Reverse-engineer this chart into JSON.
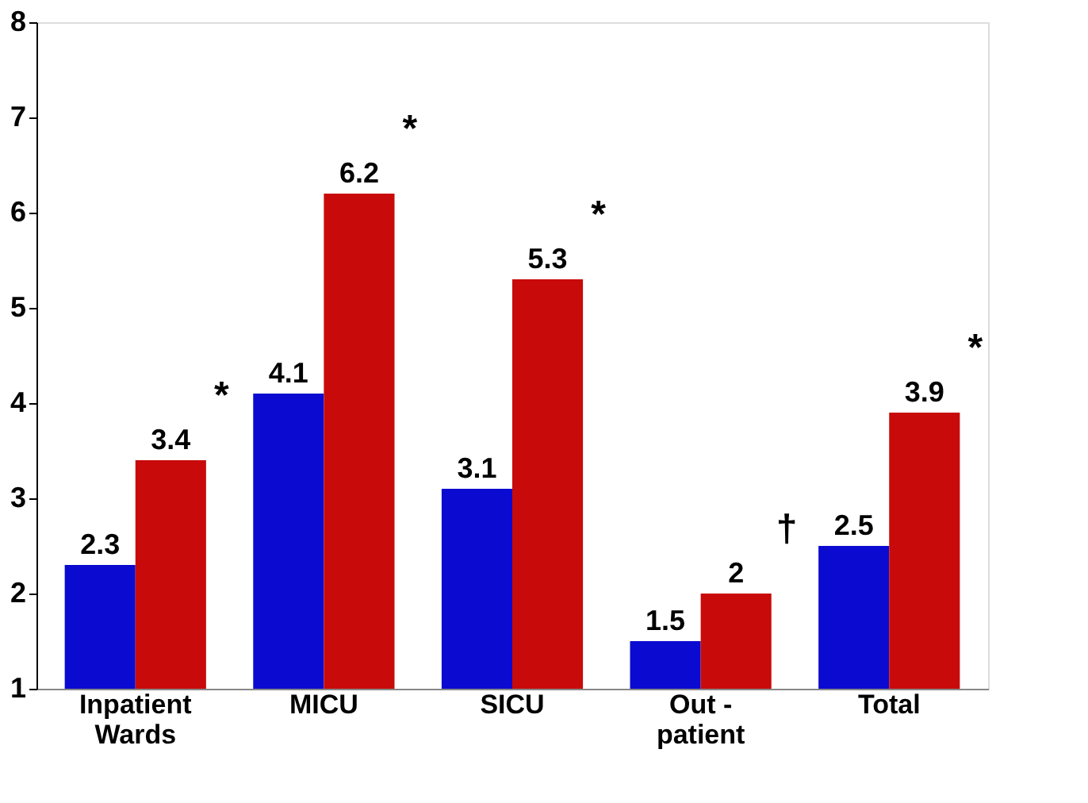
{
  "chart_data": {
    "type": "bar",
    "categories": [
      "Inpatient\nWards",
      "MICU",
      "SICU",
      "Out -\npatient",
      "Total"
    ],
    "series": [
      {
        "color": "#0a0ad0",
        "values": [
          2.3,
          4.1,
          3.1,
          1.5,
          2.5
        ]
      },
      {
        "color": "#c80a0a",
        "values": [
          3.4,
          6.2,
          5.3,
          2,
          3.9
        ]
      }
    ],
    "ylim": [
      1,
      8
    ],
    "yticks": [
      1,
      2,
      3,
      4,
      5,
      6,
      7,
      8
    ],
    "grid": false,
    "legend": false,
    "data_labels": true,
    "annotations": [
      "*",
      "*",
      "*",
      "†",
      "*"
    ]
  }
}
